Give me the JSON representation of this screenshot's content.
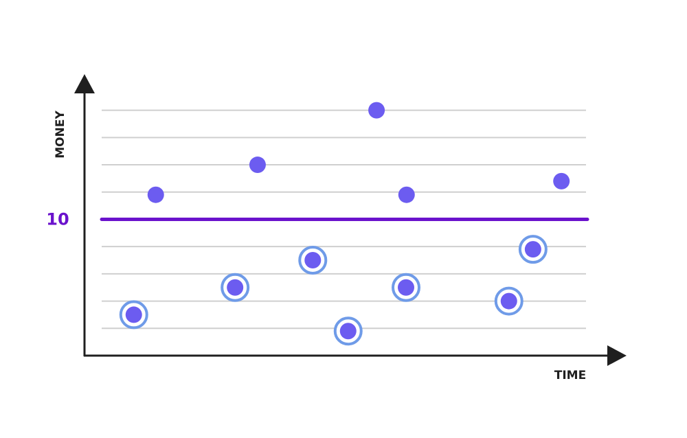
{
  "chart_data": {
    "type": "scatter",
    "x_label": "TIME",
    "y_label": "MONEY",
    "xlim": [
      0,
      100
    ],
    "ylim": [
      5,
      15.3
    ],
    "yticks": [
      10
    ],
    "threshold": 10,
    "threshold_color": "#6a12cc",
    "gridlines": [
      6,
      7,
      8,
      9,
      11,
      12,
      13,
      14
    ],
    "series": [
      {
        "color": "#6c5cf0",
        "marker": "dot",
        "x": [
          13.3,
          32.3,
          54.5,
          60.1,
          89.0
        ],
        "values": [
          10.9,
          12.0,
          14.0,
          10.9,
          11.4
        ]
      },
      {
        "color": "#6c5cf0",
        "ring_color": "#6f9be8",
        "marker": "ring",
        "x": [
          9.2,
          28.1,
          42.6,
          49.2,
          60.0,
          79.2,
          83.7
        ],
        "values": [
          6.5,
          7.5,
          8.5,
          5.9,
          7.5,
          7.0,
          8.9
        ]
      }
    ]
  }
}
